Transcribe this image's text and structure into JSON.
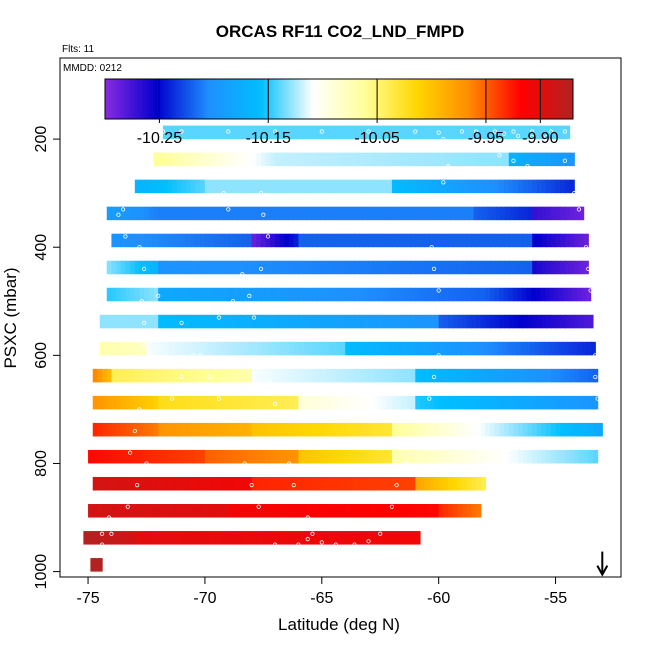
{
  "chart_data": {
    "type": "heatmap",
    "title": "ORCAS RF11 CO2_LND_FMPD",
    "subtitle_flights": "Flts: 11",
    "subtitle_date": "MMDD: 0212",
    "xlabel": "Latitude (deg N)",
    "ylabel": "PSXC (mbar)",
    "xlim": [
      -76.2,
      -52.2
    ],
    "ylim": [
      1010,
      50
    ],
    "x_ticks": [
      -75,
      -70,
      -65,
      -60,
      -55
    ],
    "x_tick_labels": [
      "-75",
      "-70",
      "-65",
      "-60",
      "-55"
    ],
    "y_ticks": [
      200,
      400,
      600,
      800,
      1000
    ],
    "y_tick_labels": [
      "200",
      "400",
      "600",
      "800",
      "1000"
    ],
    "colorbar": {
      "range": [
        -10.3,
        -9.87
      ],
      "ticks": [
        -10.25,
        -10.15,
        -10.05,
        -9.95,
        -9.9
      ],
      "tick_labels": [
        "-10.25",
        "-10.15",
        "-10.05",
        "-9.95",
        "-9.90"
      ],
      "colors": [
        "#8a2be2",
        "#0000cd",
        "#1e90ff",
        "#00bfff",
        "#ffffff",
        "#ffff99",
        "#ffd700",
        "#ff8c00",
        "#ff0000",
        "#b22222"
      ]
    },
    "bands": [
      {
        "p": [
          175,
          200
        ],
        "segments": [
          [
            -71.8,
            -54.4,
            -10.14,
            -10.14
          ]
        ]
      },
      {
        "p": [
          225,
          250
        ],
        "segments": [
          [
            -72.2,
            -67.0,
            -10.06,
            -10.12
          ],
          [
            -67.0,
            -57.0,
            -10.12,
            -10.13
          ],
          [
            -57.0,
            -54.2,
            -10.17,
            -10.2
          ]
        ]
      },
      {
        "p": [
          275,
          300
        ],
        "segments": [
          [
            -73.0,
            -70.0,
            -10.17,
            -10.14
          ],
          [
            -70.0,
            -62.0,
            -10.13,
            -10.13
          ],
          [
            -62.0,
            -56.0,
            -10.16,
            -10.22
          ],
          [
            -56.0,
            -54.2,
            -10.22,
            -10.24
          ]
        ]
      },
      {
        "p": [
          325,
          350
        ],
        "segments": [
          [
            -74.2,
            -72.0,
            -10.19,
            -10.21
          ],
          [
            -72.0,
            -58.5,
            -10.21,
            -10.21
          ],
          [
            -58.5,
            -56.0,
            -10.22,
            -10.24
          ],
          [
            -56.0,
            -53.8,
            -10.27,
            -10.29
          ]
        ]
      },
      {
        "p": [
          375,
          400
        ],
        "segments": [
          [
            -74.0,
            -68.0,
            -10.2,
            -10.22
          ],
          [
            -68.0,
            -66.0,
            -10.29,
            -10.24
          ],
          [
            -66.0,
            -56.0,
            -10.22,
            -10.22
          ],
          [
            -56.0,
            -53.6,
            -10.25,
            -10.29
          ]
        ]
      },
      {
        "p": [
          425,
          450
        ],
        "segments": [
          [
            -74.2,
            -72.0,
            -10.13,
            -10.17
          ],
          [
            -72.0,
            -56.0,
            -10.2,
            -10.22
          ],
          [
            -56.0,
            -53.6,
            -10.26,
            -10.29
          ]
        ]
      },
      {
        "p": [
          475,
          500
        ],
        "segments": [
          [
            -74.2,
            -72.0,
            -10.15,
            -10.13
          ],
          [
            -72.0,
            -58.0,
            -10.18,
            -10.22
          ],
          [
            -58.0,
            -53.5,
            -10.22,
            -10.29
          ]
        ]
      },
      {
        "p": [
          525,
          550
        ],
        "segments": [
          [
            -74.5,
            -72.0,
            -10.13,
            -10.13
          ],
          [
            -72.0,
            -60.0,
            -10.16,
            -10.2
          ],
          [
            -60.0,
            -53.4,
            -10.22,
            -10.28
          ]
        ]
      },
      {
        "p": [
          575,
          600
        ],
        "segments": [
          [
            -74.5,
            -72.5,
            -10.07,
            -10.08
          ],
          [
            -72.5,
            -64.0,
            -10.11,
            -10.14
          ],
          [
            -64.0,
            -53.3,
            -10.16,
            -10.24
          ]
        ]
      },
      {
        "p": [
          625,
          650
        ],
        "segments": [
          [
            -74.8,
            -74.0,
            -9.96,
            -10.0
          ],
          [
            -74.0,
            -68.0,
            -10.04,
            -10.07
          ],
          [
            -68.0,
            -61.0,
            -10.11,
            -10.13
          ],
          [
            -61.0,
            -53.2,
            -10.16,
            -10.22
          ]
        ]
      },
      {
        "p": [
          675,
          700
        ],
        "segments": [
          [
            -74.8,
            -72.0,
            -9.97,
            -10.01
          ],
          [
            -72.0,
            -66.0,
            -10.02,
            -10.04
          ],
          [
            -66.0,
            -61.0,
            -10.09,
            -10.12
          ],
          [
            -61.0,
            -53.2,
            -10.15,
            -10.2
          ]
        ]
      },
      {
        "p": [
          725,
          750
        ],
        "segments": [
          [
            -74.8,
            -72.0,
            -9.93,
            -9.96
          ],
          [
            -72.0,
            -68.0,
            -9.97,
            -9.99
          ],
          [
            -68.0,
            -62.0,
            -10.0,
            -10.03
          ],
          [
            -62.0,
            -53.0,
            -10.06,
            -10.18
          ]
        ]
      },
      {
        "p": [
          775,
          800
        ],
        "segments": [
          [
            -75.0,
            -70.0,
            -9.92,
            -9.94
          ],
          [
            -70.0,
            -66.0,
            -9.95,
            -9.97
          ],
          [
            -66.0,
            -62.0,
            -10.0,
            -10.03
          ],
          [
            -62.0,
            -53.2,
            -10.07,
            -10.14
          ]
        ]
      },
      {
        "p": [
          825,
          850
        ],
        "segments": [
          [
            -74.8,
            -68.0,
            -9.89,
            -9.91
          ],
          [
            -68.0,
            -61.0,
            -9.93,
            -9.94
          ],
          [
            -61.0,
            -58.0,
            -9.98,
            -10.04
          ],
          [
            -58.0,
            -58.0,
            -10.04,
            -10.04
          ]
        ]
      },
      {
        "p": [
          875,
          900
        ],
        "segments": [
          [
            -75.0,
            -69.0,
            -9.89,
            -9.9
          ],
          [
            -69.0,
            -60.0,
            -9.91,
            -9.92
          ],
          [
            -60.0,
            -58.2,
            -9.93,
            -9.96
          ]
        ]
      },
      {
        "p": [
          925,
          950
        ],
        "segments": [
          [
            -75.2,
            -73.0,
            -9.87,
            -9.89
          ],
          [
            -73.0,
            -60.8,
            -9.9,
            -9.91
          ]
        ]
      },
      {
        "p": [
          975,
          1000
        ],
        "segments": [
          [
            -74.9,
            -74.4,
            -9.87,
            -9.87
          ]
        ]
      }
    ],
    "flight_track": [
      [
        -71.8,
        186
      ],
      [
        -71.0,
        186
      ],
      [
        -69.0,
        186
      ],
      [
        -67.0,
        186
      ],
      [
        -65.0,
        186
      ],
      [
        -63.0,
        186
      ],
      [
        -61.0,
        186
      ],
      [
        -60.0,
        188
      ],
      [
        -59.8,
        200
      ],
      [
        -59.6,
        220
      ],
      [
        -59.6,
        250
      ],
      [
        -59.8,
        280
      ],
      [
        -60.0,
        320
      ],
      [
        -60.2,
        360
      ],
      [
        -60.3,
        400
      ],
      [
        -60.2,
        440
      ],
      [
        -60.0,
        480
      ],
      [
        -59.9,
        520
      ],
      [
        -59.9,
        560
      ],
      [
        -60.0,
        600
      ],
      [
        -60.2,
        640
      ],
      [
        -60.4,
        680
      ],
      [
        -60.6,
        720
      ],
      [
        -61.0,
        760
      ],
      [
        -61.4,
        800
      ],
      [
        -61.8,
        840
      ],
      [
        -62.0,
        880
      ],
      [
        -62.2,
        910
      ],
      [
        -62.5,
        930
      ],
      [
        -63.0,
        944
      ],
      [
        -63.6,
        950
      ],
      [
        -64.4,
        950
      ],
      [
        -65.0,
        946
      ],
      [
        -65.4,
        930
      ],
      [
        -65.6,
        900
      ],
      [
        -65.9,
        870
      ],
      [
        -66.2,
        840
      ],
      [
        -66.4,
        800
      ],
      [
        -66.6,
        760
      ],
      [
        -66.8,
        720
      ],
      [
        -67.0,
        690
      ],
      [
        -67.2,
        650
      ],
      [
        -67.4,
        610
      ],
      [
        -67.7,
        570
      ],
      [
        -67.9,
        530
      ],
      [
        -68.1,
        490
      ],
      [
        -68.4,
        450
      ],
      [
        -68.6,
        410
      ],
      [
        -68.8,
        370
      ],
      [
        -69.0,
        330
      ],
      [
        -69.2,
        300
      ],
      [
        -69.3,
        270
      ],
      [
        -69.0,
        250
      ],
      [
        -68.5,
        244
      ],
      [
        -68.0,
        250
      ],
      [
        -67.8,
        270
      ],
      [
        -67.6,
        300
      ],
      [
        -67.5,
        340
      ],
      [
        -67.3,
        380
      ],
      [
        -67.2,
        410
      ],
      [
        -67.6,
        440
      ],
      [
        -68.2,
        470
      ],
      [
        -68.8,
        500
      ],
      [
        -69.4,
        530
      ],
      [
        -70.0,
        560
      ],
      [
        -70.5,
        600
      ],
      [
        -71.0,
        640
      ],
      [
        -71.4,
        680
      ],
      [
        -71.8,
        720
      ],
      [
        -72.1,
        760
      ],
      [
        -72.5,
        800
      ],
      [
        -72.9,
        840
      ],
      [
        -73.3,
        880
      ],
      [
        -73.6,
        910
      ],
      [
        -74.0,
        930
      ],
      [
        -74.4,
        950
      ],
      [
        -74.8,
        960
      ],
      [
        -74.4,
        930
      ],
      [
        -74.1,
        900
      ],
      [
        -73.8,
        860
      ],
      [
        -73.5,
        820
      ],
      [
        -73.2,
        780
      ],
      [
        -73.0,
        740
      ],
      [
        -72.8,
        700
      ],
      [
        -72.7,
        660
      ],
      [
        -72.6,
        620
      ],
      [
        -72.6,
        580
      ],
      [
        -72.6,
        540
      ],
      [
        -72.7,
        500
      ],
      [
        -72.9,
        460
      ],
      [
        -73.1,
        420
      ],
      [
        -73.4,
        380
      ],
      [
        -73.7,
        340
      ],
      [
        -74.0,
        320
      ],
      [
        -73.5,
        330
      ],
      [
        -73.1,
        360
      ],
      [
        -72.8,
        400
      ],
      [
        -72.6,
        440
      ],
      [
        -72.3,
        470
      ],
      [
        -72.0,
        490
      ],
      [
        -71.5,
        510
      ],
      [
        -71.0,
        540
      ],
      [
        -70.6,
        570
      ],
      [
        -70.2,
        600
      ],
      [
        -69.8,
        640
      ],
      [
        -69.4,
        680
      ],
      [
        -69.0,
        720
      ],
      [
        -68.6,
        760
      ],
      [
        -68.3,
        800
      ],
      [
        -68.0,
        840
      ],
      [
        -67.7,
        880
      ],
      [
        -67.4,
        920
      ],
      [
        -67.0,
        950
      ],
      [
        -66.5,
        956
      ],
      [
        -66.0,
        950
      ],
      [
        -65.6,
        940
      ],
      [
        -59.0,
        186
      ],
      [
        -58.4,
        186
      ],
      [
        -57.6,
        186
      ],
      [
        -56.8,
        186
      ],
      [
        -56.0,
        186
      ],
      [
        -55.2,
        186
      ],
      [
        -54.6,
        186
      ],
      [
        -54.6,
        210
      ],
      [
        -54.6,
        240
      ],
      [
        -54.4,
        270
      ],
      [
        -54.2,
        300
      ],
      [
        -54.0,
        330
      ],
      [
        -53.8,
        360
      ],
      [
        -53.7,
        400
      ],
      [
        -53.6,
        440
      ],
      [
        -53.5,
        480
      ],
      [
        -53.5,
        520
      ],
      [
        -53.4,
        560
      ],
      [
        -53.3,
        600
      ],
      [
        -53.3,
        640
      ],
      [
        -53.2,
        680
      ],
      [
        -53.3,
        720
      ],
      [
        -53.4,
        760
      ],
      [
        -58.0,
        215
      ],
      [
        -57.4,
        230
      ],
      [
        -56.8,
        240
      ],
      [
        -56.2,
        250
      ],
      [
        -55.6,
        262
      ],
      [
        -57.2,
        190
      ],
      [
        -56.6,
        194
      ],
      [
        -56.0,
        196
      ],
      [
        -55.4,
        196
      ]
    ],
    "arrow_marker": {
      "lat": -53.0,
      "p": 1000
    }
  }
}
